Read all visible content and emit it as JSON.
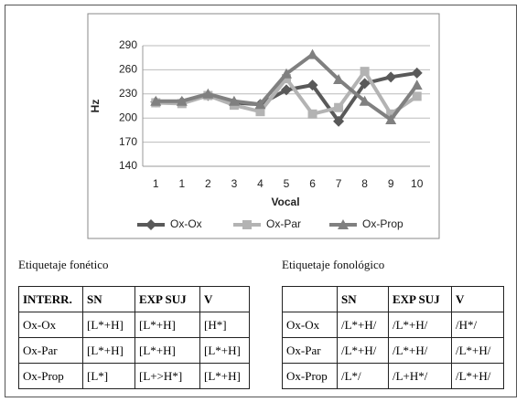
{
  "chart_data": {
    "type": "line",
    "x_label": "Vocal",
    "y_label": "Hz",
    "categories": [
      "1",
      "1",
      "2",
      "3",
      "4",
      "5",
      "6",
      "7",
      "8",
      "9",
      "10"
    ],
    "ylim": [
      140,
      290
    ],
    "yticks": [
      140,
      170,
      200,
      230,
      260,
      290
    ],
    "grid": true,
    "legend": "bottom",
    "series": [
      {
        "name": "Ox-Ox",
        "color": "#595959",
        "marker": "diamond",
        "values": [
          220,
          220,
          228,
          219,
          217,
          235,
          241,
          196,
          243,
          251,
          256
        ]
      },
      {
        "name": "Ox-Par",
        "color": "#b3b3b3",
        "marker": "square",
        "values": [
          219,
          218,
          228,
          216,
          208,
          249,
          205,
          213,
          258,
          205,
          227
        ]
      },
      {
        "name": "Ox-Prop",
        "color": "#808080",
        "marker": "triangle",
        "values": [
          221,
          221,
          230,
          221,
          217,
          255,
          279,
          248,
          221,
          198,
          241
        ]
      }
    ]
  },
  "tables": [
    {
      "title": "Etiquetaje fonético",
      "header": [
        "INTERR.",
        "SN",
        "EXP SUJ",
        "V"
      ],
      "rows": [
        [
          "Ox-Ox",
          "[L*+H]",
          "[L*+H]",
          "[H*]"
        ],
        [
          "Ox-Par",
          "[L*+H]",
          "[L*+H]",
          "[L*+H]"
        ],
        [
          "Ox-Prop",
          "[L*]",
          "[L+>H*]",
          "[L*+H]"
        ]
      ]
    },
    {
      "title": "Etiquetaje fonológico",
      "header": [
        "SN",
        "EXP SUJ",
        "V"
      ],
      "rows": [
        [
          "Ox-Ox",
          "/L*+H/",
          "/L*+H/",
          "/H*/"
        ],
        [
          "Ox-Par",
          "/L*+H/",
          "/L*+H/",
          "/L*+H/"
        ],
        [
          "Ox-Prop",
          "/L*/",
          "/L+H*/",
          "/L*+H/"
        ]
      ]
    }
  ]
}
